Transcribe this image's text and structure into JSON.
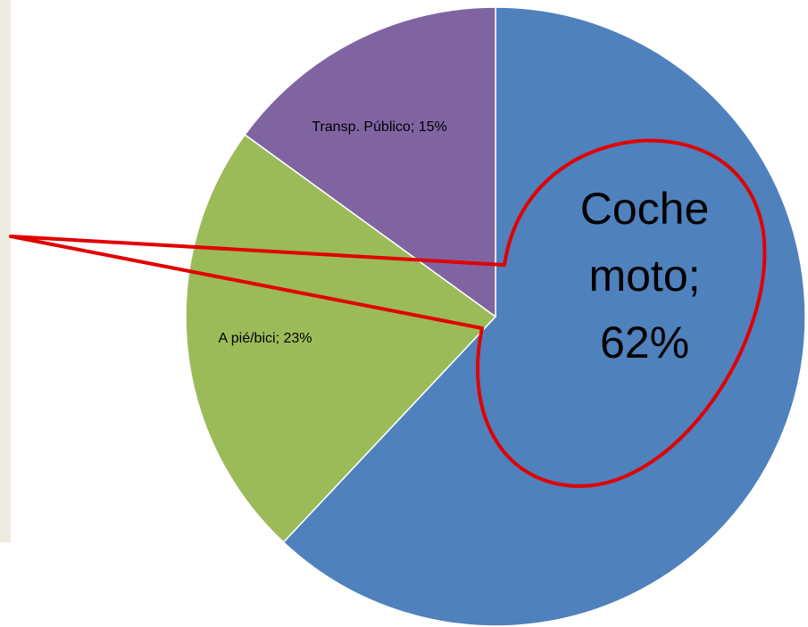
{
  "chart_data": {
    "type": "pie",
    "values": [
      62,
      23,
      15
    ],
    "value_labels": [
      "Coche moto; 62%",
      "A pié/bici; 23%",
      "Transp. Público; 15%"
    ],
    "colors": [
      "#4f81bd",
      "#9bbb59",
      "#8064a2"
    ]
  }
}
